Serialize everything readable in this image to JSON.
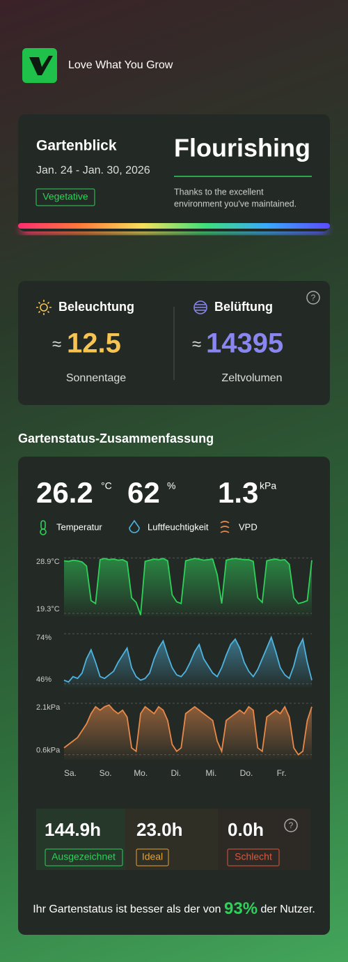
{
  "header": {
    "brand": "Love What You Grow"
  },
  "overview": {
    "title": "Gartenblick",
    "dates": "Jan. 24 - Jan. 30, 2026",
    "stage": "Vegetative",
    "status": "Flourishing",
    "note_lines": [
      "Thanks to the excellent",
      "environment you've maintained."
    ]
  },
  "light_air": {
    "light": {
      "title": "Beleuchtung",
      "approx": "≈",
      "value": 12.5,
      "unit": "Sonnentage"
    },
    "air": {
      "title": "Belüftung",
      "approx": "≈",
      "value": 14395,
      "unit": "Zeltvolumen"
    }
  },
  "summary": {
    "title": "Gartenstatus-Zusammenfassung",
    "readings": [
      {
        "value": 26.2,
        "unit": "°C",
        "label": "Temperatur"
      },
      {
        "value": 62,
        "unit": "%",
        "label": "Luftfeuchtigkeit"
      },
      {
        "value": 1.3,
        "unit": "kPa",
        "label": "VPD"
      }
    ],
    "days": [
      "Sa.",
      "So.",
      "Mo.",
      "Di.",
      "Mi.",
      "Do.",
      "Fr."
    ],
    "hours": [
      {
        "value": "144.9h",
        "label": "Ausgezeichnet"
      },
      {
        "value": "23.0h",
        "label": "Ideal"
      },
      {
        "value": "0.0h",
        "label": "Schlecht"
      }
    ],
    "footer": {
      "before": "Ihr Gartenstatus ist besser als der von",
      "percent": "93%",
      "after": "der Nutzer."
    }
  },
  "chart_data": [
    {
      "type": "area",
      "color": "#2fd15a",
      "ylim": [
        18.8,
        29.3
      ],
      "yticks": [
        {
          "value": 28.9,
          "label": "28.9°C"
        },
        {
          "value": 19.3,
          "label": "19.3°C"
        }
      ],
      "values": [
        28.4,
        28.3,
        28.5,
        28.4,
        28.2,
        27.5,
        21.5,
        21.0,
        28.6,
        28.8,
        28.6,
        28.7,
        28.5,
        28.6,
        28.2,
        22.0,
        21.2,
        19.0,
        28.3,
        28.5,
        28.7,
        28.6,
        28.8,
        28.4,
        22.5,
        21.3,
        21.0,
        28.4,
        28.6,
        28.8,
        28.7,
        28.5,
        28.6,
        28.7,
        26.0,
        21.0,
        28.5,
        28.7,
        28.8,
        28.7,
        28.6,
        28.6,
        28.3,
        22.0,
        21.2,
        28.4,
        28.6,
        28.7,
        28.5,
        28.6,
        27.8,
        22.0,
        21.0,
        21.2,
        21.5,
        28.5
      ]
    },
    {
      "type": "area",
      "color": "#4fb3e0",
      "ylim": [
        44,
        76
      ],
      "yticks": [
        {
          "value": 74,
          "label": "74%"
        },
        {
          "value": 46,
          "label": "46%"
        }
      ],
      "values": [
        48,
        47,
        50,
        49,
        52,
        60,
        65,
        58,
        50,
        49,
        51,
        53,
        58,
        62,
        66,
        55,
        50,
        48,
        49,
        52,
        60,
        66,
        70,
        62,
        55,
        51,
        50,
        53,
        58,
        64,
        68,
        60,
        56,
        52,
        50,
        55,
        62,
        68,
        71,
        66,
        58,
        53,
        50,
        54,
        60,
        66,
        72,
        64,
        55,
        51,
        49,
        56,
        66,
        71,
        58,
        48
      ]
    },
    {
      "type": "area",
      "color": "#e8894a",
      "ylim": [
        0.45,
        2.2
      ],
      "yticks": [
        {
          "value": 2.1,
          "label": "2.1kPa"
        },
        {
          "value": 0.6,
          "label": "0.6kPa"
        }
      ],
      "values": [
        0.8,
        0.9,
        1.0,
        1.1,
        1.3,
        1.5,
        1.8,
        2.0,
        1.9,
        2.0,
        2.05,
        1.9,
        1.8,
        1.9,
        1.7,
        0.8,
        0.7,
        1.8,
        2.0,
        1.9,
        1.8,
        2.0,
        1.9,
        1.6,
        0.9,
        0.7,
        0.8,
        1.8,
        1.9,
        2.0,
        1.9,
        1.8,
        1.7,
        1.6,
        1.0,
        0.7,
        1.6,
        1.7,
        1.8,
        1.9,
        1.8,
        2.0,
        1.9,
        0.8,
        0.7,
        1.7,
        1.8,
        1.9,
        1.8,
        2.0,
        1.7,
        0.8,
        0.6,
        0.7,
        1.6,
        2.0
      ]
    }
  ]
}
